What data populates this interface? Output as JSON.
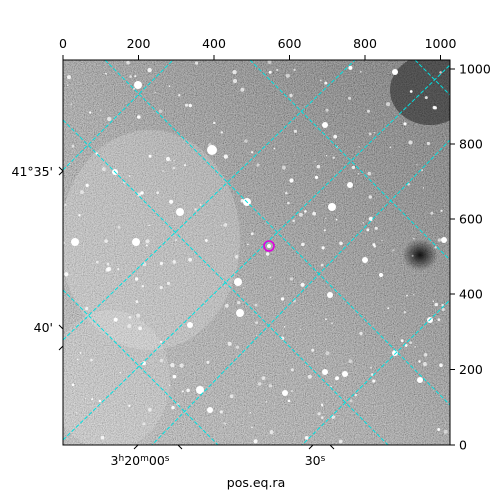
{
  "plot": {
    "x_pixel_ticks": [
      "0",
      "200",
      "400",
      "600",
      "800",
      "1000"
    ],
    "y_pixel_ticks": [
      "0",
      "200",
      "400",
      "600",
      "800",
      "1000"
    ],
    "dec_ticks": [
      "41°35'",
      "40'"
    ],
    "ra_ticks": [
      "3h20m00s",
      "30s"
    ],
    "ra_tick_main": "3",
    "ra_tick_h": "h",
    "ra_tick_min": "20",
    "ra_tick_m": "m",
    "ra_tick_sec": "00",
    "ra_tick_s": "s",
    "x_axis_title": "pos.eq.ra"
  },
  "colors": {
    "grid": "#00e0e0",
    "marker": "#e000e0"
  }
}
